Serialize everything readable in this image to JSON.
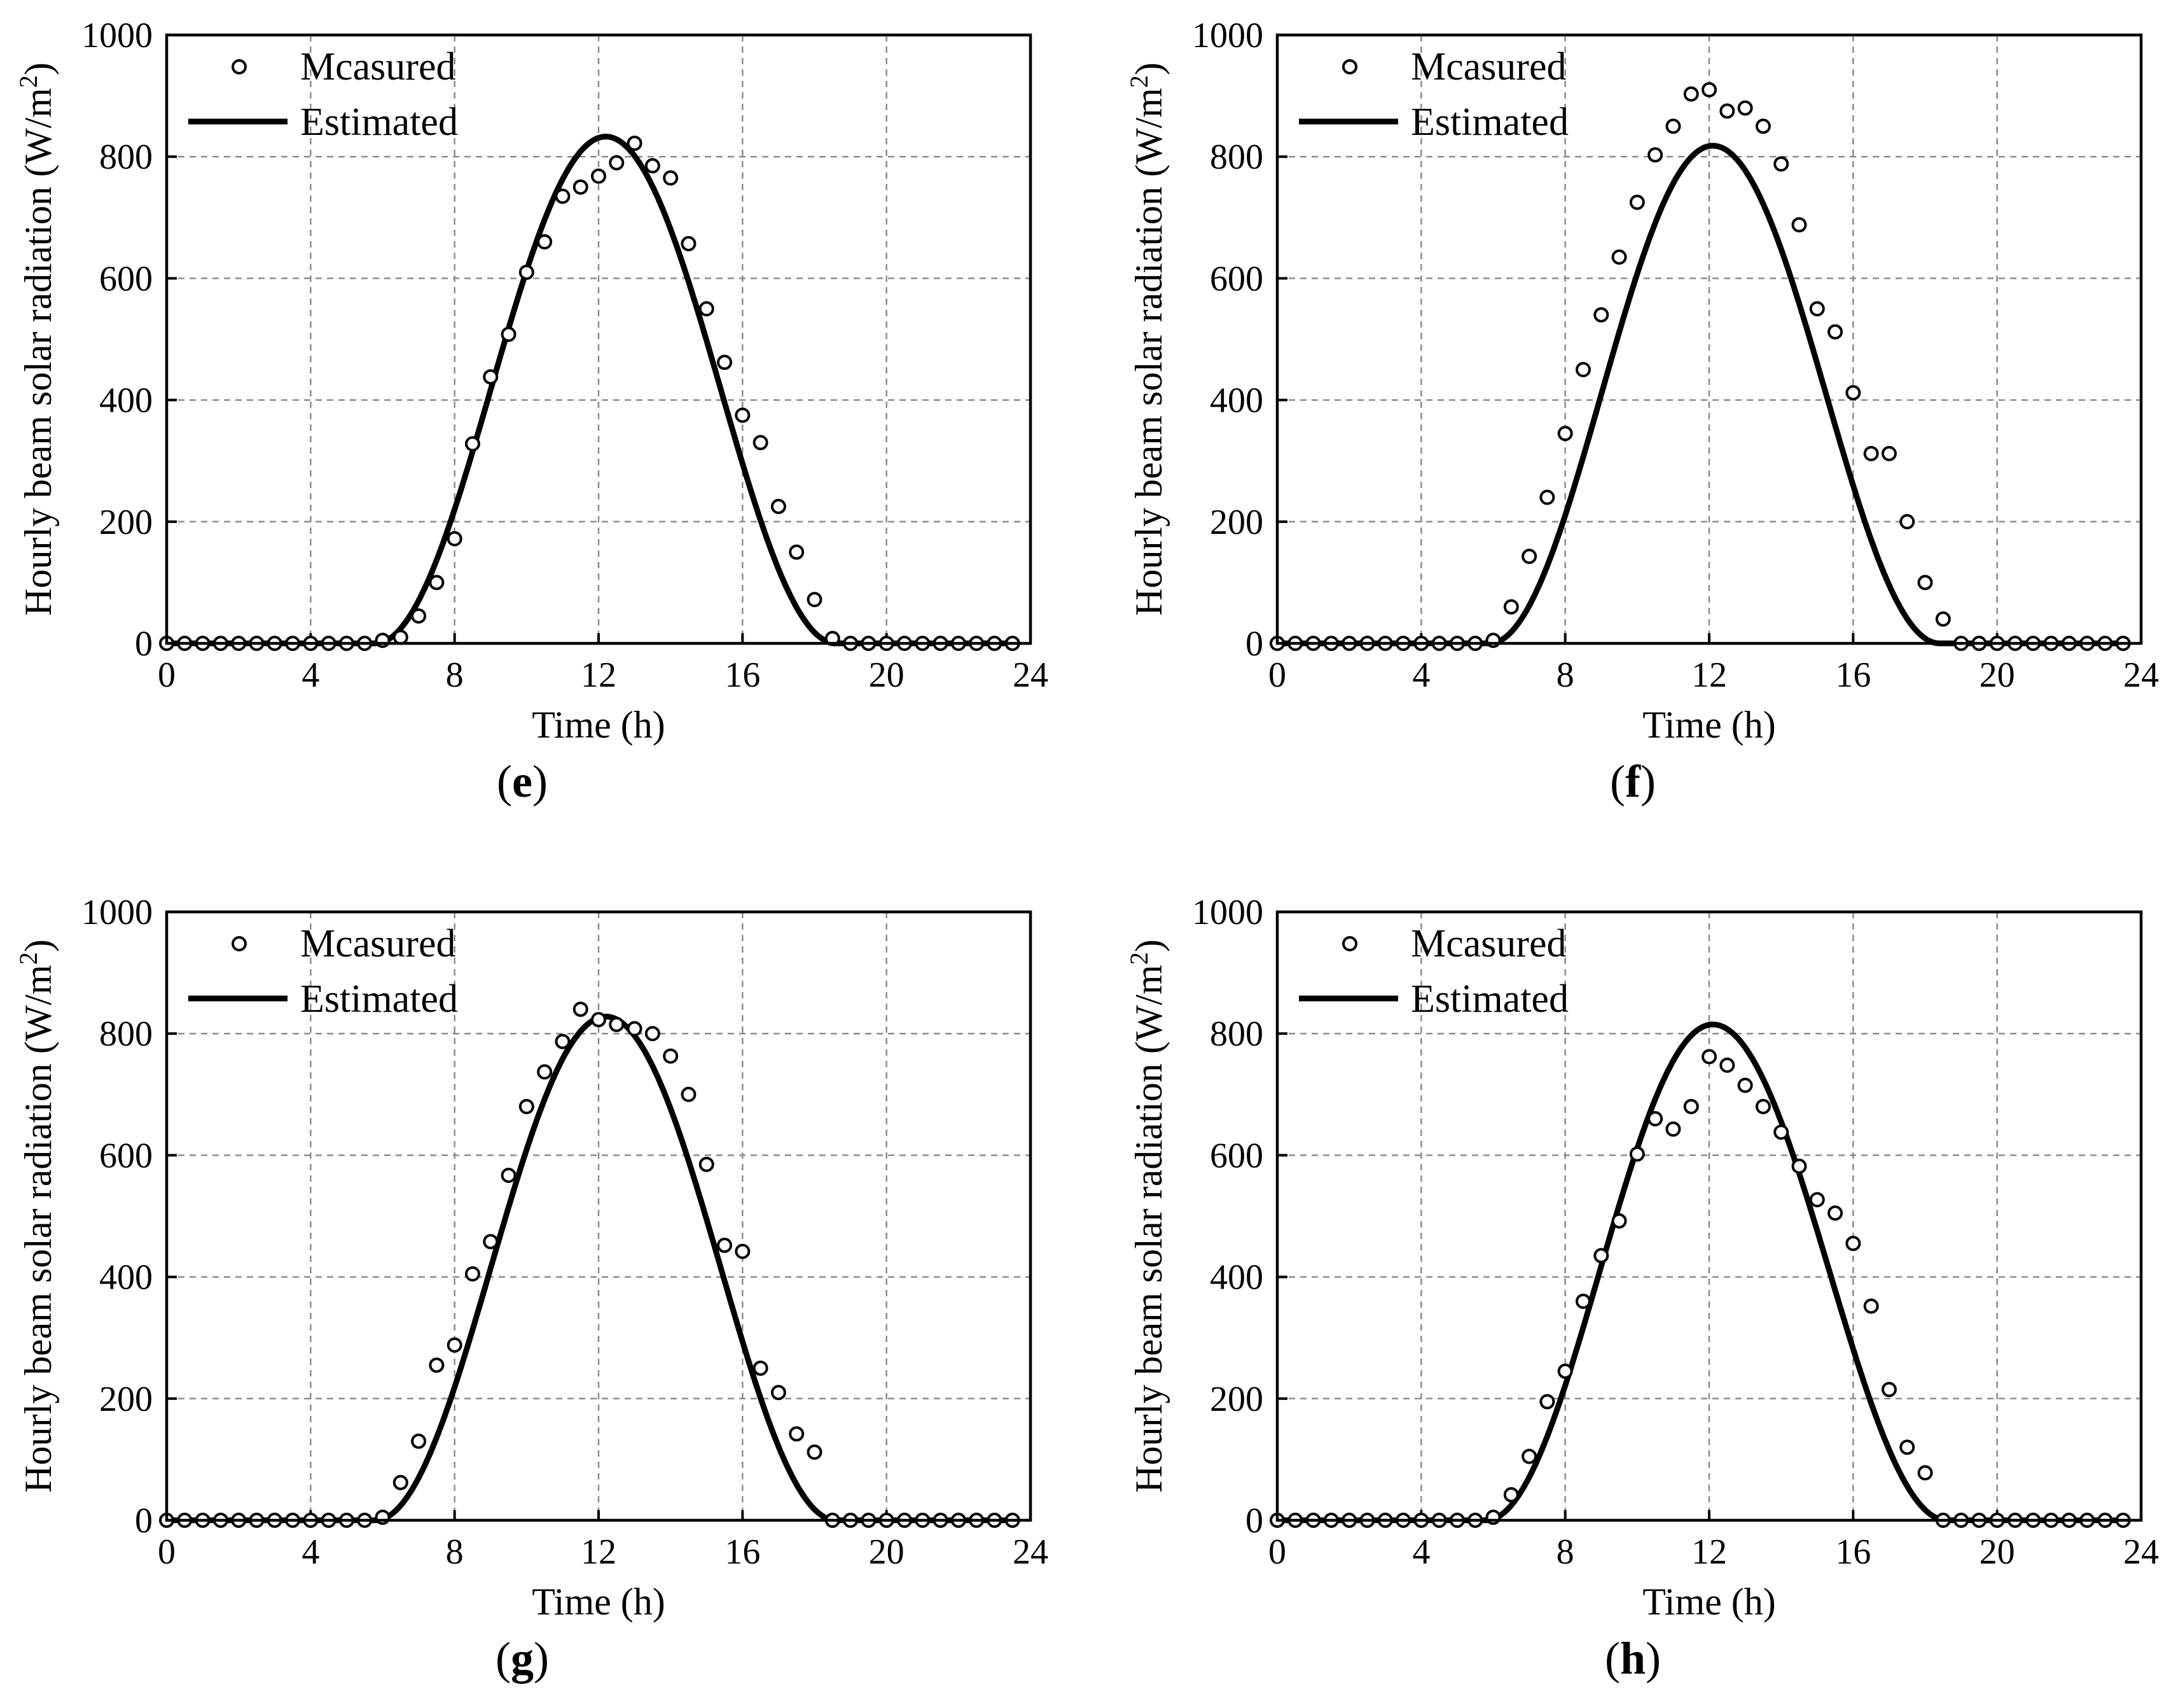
{
  "chart_data": [
    {
      "type": "scatter+line",
      "panel": "(e)",
      "panel_letter": "e",
      "xlabel": "Time (h)",
      "ylabel": "Hourly beam solar radiation (W/m2)",
      "ylabel_main": "Hourly beam solar radiation (W/m",
      "ylabel_sup": "2",
      "ylabel_close": ")",
      "xlim": [
        0,
        24
      ],
      "ylim": [
        0,
        1000
      ],
      "xticks": [
        0,
        4,
        8,
        12,
        16,
        20,
        24
      ],
      "yticks": [
        0,
        200,
        400,
        600,
        800,
        1000
      ],
      "grid": true,
      "legend": [
        "Mcasured",
        "Estimated"
      ],
      "legend_position": "top-left",
      "measured": {
        "x": [
          0,
          0.5,
          1,
          1.5,
          2,
          2.5,
          3,
          3.5,
          4,
          4.5,
          5,
          5.5,
          6,
          6.5,
          7,
          7.5,
          8,
          8.5,
          9,
          9.5,
          10,
          10.5,
          11,
          11.5,
          12,
          12.5,
          13,
          13.5,
          14,
          14.5,
          15,
          15.5,
          16,
          16.5,
          17,
          17.5,
          18,
          18.5,
          19,
          19.5,
          20,
          20.5,
          21,
          21.5,
          22,
          22.5,
          23,
          23.5
        ],
        "y": [
          0,
          0,
          0,
          0,
          0,
          0,
          0,
          0,
          0,
          0,
          0,
          0,
          5,
          10,
          45,
          100,
          172,
          328,
          438,
          508,
          610,
          660,
          735,
          750,
          768,
          790,
          822,
          785,
          765,
          657,
          550,
          462,
          375,
          330,
          225,
          150,
          72,
          8,
          0,
          0,
          0,
          0,
          0,
          0,
          0,
          0,
          0,
          0
        ]
      },
      "estimated": {
        "peak": 833,
        "center": 12.2,
        "sunrise": 5.8,
        "sunset": 18.6
      }
    },
    {
      "type": "scatter+line",
      "panel": "(f)",
      "panel_letter": "f",
      "xlabel": "Time (h)",
      "ylabel": "Hourly beam solar radiation (W/m2)",
      "ylabel_main": "Hourly beam solar radiation (W/m",
      "ylabel_sup": "2",
      "ylabel_close": ")",
      "xlim": [
        0,
        24
      ],
      "ylim": [
        0,
        1000
      ],
      "xticks": [
        0,
        4,
        8,
        12,
        16,
        20,
        24
      ],
      "yticks": [
        0,
        200,
        400,
        600,
        800,
        1000
      ],
      "grid": true,
      "legend": [
        "Mcasured",
        "Estimated"
      ],
      "legend_position": "top-left",
      "measured": {
        "x": [
          0,
          0.5,
          1,
          1.5,
          2,
          2.5,
          3,
          3.5,
          4,
          4.5,
          5,
          5.5,
          6,
          6.5,
          7,
          7.5,
          8,
          8.5,
          9,
          9.5,
          10,
          10.5,
          11,
          11.5,
          12,
          12.5,
          13,
          13.5,
          14,
          14.5,
          15,
          15.5,
          16,
          16.5,
          17,
          17.5,
          18,
          18.5,
          19,
          19.5,
          20,
          20.5,
          21,
          21.5,
          22,
          22.5,
          23,
          23.5
        ],
        "y": [
          0,
          0,
          0,
          0,
          0,
          0,
          0,
          0,
          0,
          0,
          0,
          0,
          5,
          60,
          143,
          240,
          345,
          450,
          540,
          635,
          725,
          803,
          850,
          903,
          910,
          875,
          880,
          850,
          788,
          688,
          550,
          512,
          412,
          312,
          312,
          200,
          100,
          40,
          0,
          0,
          0,
          0,
          0,
          0,
          0,
          0,
          0,
          0
        ]
      },
      "estimated": {
        "peak": 818,
        "center": 12.1,
        "sunrise": 5.9,
        "sunset": 18.4
      }
    },
    {
      "type": "scatter+line",
      "panel": "(g)",
      "panel_letter": "g",
      "xlabel": "Time (h)",
      "ylabel": "Hourly beam solar radiation (W/m2)",
      "ylabel_main": "Hourly beam solar radiation (W/m",
      "ylabel_sup": "2",
      "ylabel_close": ")",
      "xlim": [
        0,
        24
      ],
      "ylim": [
        0,
        1000
      ],
      "xticks": [
        0,
        4,
        8,
        12,
        16,
        20,
        24
      ],
      "yticks": [
        0,
        200,
        400,
        600,
        800,
        1000
      ],
      "grid": true,
      "legend": [
        "Mcasured",
        "Estimated"
      ],
      "legend_position": "top-left",
      "measured": {
        "x": [
          0,
          0.5,
          1,
          1.5,
          2,
          2.5,
          3,
          3.5,
          4,
          4.5,
          5,
          5.5,
          6,
          6.5,
          7,
          7.5,
          8,
          8.5,
          9,
          9.5,
          10,
          10.5,
          11,
          11.5,
          12,
          12.5,
          13,
          13.5,
          14,
          14.5,
          15,
          15.5,
          16,
          16.5,
          17,
          17.5,
          18,
          18.5,
          19,
          19.5,
          20,
          20.5,
          21,
          21.5,
          22,
          22.5,
          23,
          23.5
        ],
        "y": [
          0,
          0,
          0,
          0,
          0,
          0,
          0,
          0,
          0,
          0,
          0,
          0,
          5,
          62,
          130,
          255,
          288,
          405,
          458,
          567,
          680,
          737,
          787,
          840,
          823,
          815,
          808,
          800,
          763,
          700,
          585,
          452,
          442,
          250,
          210,
          142,
          112,
          0,
          0,
          0,
          0,
          0,
          0,
          0,
          0,
          0,
          0,
          0
        ]
      },
      "estimated": {
        "peak": 828,
        "center": 12.2,
        "sunrise": 5.8,
        "sunset": 18.6
      }
    },
    {
      "type": "scatter+line",
      "panel": "(h)",
      "panel_letter": "h",
      "xlabel": "Time (h)",
      "ylabel": "Hourly beam solar radiation (W/m2)",
      "ylabel_main": "Hourly beam solar radiation (W/m",
      "ylabel_sup": "2",
      "ylabel_close": ")",
      "xlim": [
        0,
        24
      ],
      "ylim": [
        0,
        1000
      ],
      "xticks": [
        0,
        4,
        8,
        12,
        16,
        20,
        24
      ],
      "yticks": [
        0,
        200,
        400,
        600,
        800,
        1000
      ],
      "grid": true,
      "legend": [
        "Mcasured",
        "Estimated"
      ],
      "legend_position": "top-left",
      "measured": {
        "x": [
          0,
          0.5,
          1,
          1.5,
          2,
          2.5,
          3,
          3.5,
          4,
          4.5,
          5,
          5.5,
          6,
          6.5,
          7,
          7.5,
          8,
          8.5,
          9,
          9.5,
          10,
          10.5,
          11,
          11.5,
          12,
          12.5,
          13,
          13.5,
          14,
          14.5,
          15,
          15.5,
          16,
          16.5,
          17,
          17.5,
          18,
          18.5,
          19,
          19.5,
          20,
          20.5,
          21,
          21.5,
          22,
          22.5,
          23,
          23.5
        ],
        "y": [
          0,
          0,
          0,
          0,
          0,
          0,
          0,
          0,
          0,
          0,
          0,
          0,
          5,
          42,
          105,
          195,
          245,
          360,
          435,
          492,
          602,
          660,
          643,
          680,
          762,
          748,
          715,
          680,
          638,
          582,
          527,
          505,
          455,
          352,
          215,
          120,
          78,
          0,
          0,
          0,
          0,
          0,
          0,
          0,
          0,
          0,
          0,
          0
        ]
      },
      "estimated": {
        "peak": 815,
        "center": 12.1,
        "sunrise": 5.8,
        "sunset": 18.6
      }
    }
  ]
}
